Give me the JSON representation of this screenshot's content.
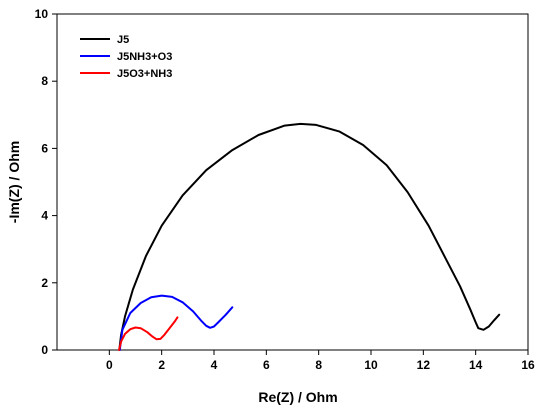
{
  "chart_data": {
    "type": "line",
    "title": "",
    "xlabel": "Re(Z) / Ohm",
    "ylabel": "-Im(Z) / Ohm",
    "xlim": [
      -2,
      16
    ],
    "ylim": [
      0,
      10
    ],
    "xticks": [
      "0",
      "2",
      "4",
      "6",
      "8",
      "10",
      "12",
      "14",
      "16"
    ],
    "yticks": [
      "0",
      "2",
      "4",
      "6",
      "8",
      "10"
    ],
    "grid": false,
    "legend_position": "top-left",
    "series": [
      {
        "name": "J5",
        "color": "#000000",
        "x": [
          0.38,
          0.45,
          0.6,
          0.9,
          1.4,
          2.0,
          2.8,
          3.7,
          4.7,
          5.7,
          6.7,
          7.3,
          7.9,
          8.8,
          9.7,
          10.6,
          11.4,
          12.2,
          12.8,
          13.4,
          13.8,
          14.0,
          14.1,
          14.3,
          14.5,
          14.7,
          14.9
        ],
        "y": [
          0.0,
          0.45,
          1.0,
          1.8,
          2.8,
          3.7,
          4.6,
          5.35,
          5.95,
          6.4,
          6.68,
          6.73,
          6.7,
          6.5,
          6.1,
          5.5,
          4.7,
          3.7,
          2.8,
          1.9,
          1.2,
          0.82,
          0.65,
          0.6,
          0.7,
          0.88,
          1.05
        ]
      },
      {
        "name": "J5NH3+O3",
        "color": "#0000ff",
        "x": [
          0.4,
          0.5,
          0.8,
          1.2,
          1.6,
          2.0,
          2.4,
          2.8,
          3.2,
          3.5,
          3.7,
          3.85,
          4.0,
          4.2,
          4.45,
          4.7
        ],
        "y": [
          0.0,
          0.6,
          1.1,
          1.4,
          1.57,
          1.62,
          1.58,
          1.42,
          1.15,
          0.88,
          0.72,
          0.66,
          0.7,
          0.85,
          1.05,
          1.27
        ]
      },
      {
        "name": "J5O3+NH3",
        "color": "#ff0000",
        "x": [
          0.37,
          0.45,
          0.6,
          0.8,
          1.0,
          1.2,
          1.45,
          1.65,
          1.8,
          1.95,
          2.1,
          2.3,
          2.5,
          2.6
        ],
        "y": [
          0.0,
          0.25,
          0.48,
          0.62,
          0.67,
          0.65,
          0.53,
          0.4,
          0.32,
          0.33,
          0.45,
          0.65,
          0.85,
          0.97
        ]
      }
    ]
  }
}
